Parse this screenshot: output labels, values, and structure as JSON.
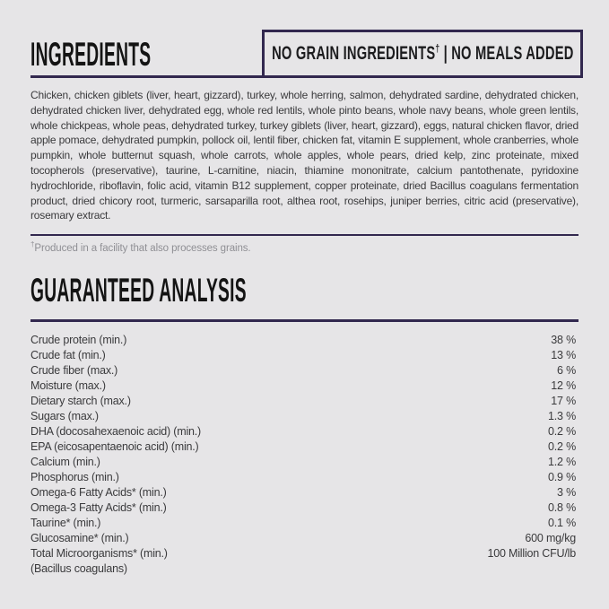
{
  "page": {
    "background_color": "#e6e5e7",
    "accent_color": "#32284f",
    "body_text_color": "#3a3a3c"
  },
  "ingredients": {
    "title": "INGREDIENTS",
    "badge": {
      "text_before_dagger": "NO GRAIN INGREDIENTS",
      "dagger": "†",
      "text_after_dagger": " | NO MEALS ADDED"
    },
    "body": "Chicken, chicken giblets (liver, heart, gizzard), turkey, whole herring, salmon, dehydrated sardine, dehydrated chicken, dehydrated chicken liver, dehydrated egg, whole red lentils, whole pinto beans, whole navy beans, whole green lentils, whole chickpeas, whole peas, dehydrated turkey, turkey giblets (liver, heart, gizzard), eggs, natural chicken flavor, dried apple pomace, dehydrated pumpkin, pollock oil, lentil fiber, chicken fat, vitamin E supplement, whole cranberries, whole pumpkin, whole butternut squash, whole carrots, whole apples, whole pears, dried kelp, zinc proteinate, mixed tocopherols (preservative), taurine, L-carnitine, niacin, thiamine mononitrate, calcium pantothenate, pyridoxine hydrochloride, riboflavin, folic acid, vitamin B12 supplement, copper proteinate, dried Bacillus coagulans fermentation product, dried chicory root, turmeric, sarsaparilla root, althea root, rosehips, juniper berries, citric acid (preservative), rosemary extract.",
    "footnote": {
      "dagger": "†",
      "text": "Produced in a facility that also processes grains."
    }
  },
  "guaranteed_analysis": {
    "title": "GUARANTEED ANALYSIS",
    "rows": [
      {
        "label": "Crude protein (min.)",
        "value": "38 %"
      },
      {
        "label": "Crude fat (min.)",
        "value": "13 %"
      },
      {
        "label": "Crude fiber (max.)",
        "value": "6 %"
      },
      {
        "label": "Moisture (max.)",
        "value": "12 %"
      },
      {
        "label": "Dietary starch (max.)",
        "value": "17 %"
      },
      {
        "label": "Sugars (max.)",
        "value": "1.3 %"
      },
      {
        "label": "DHA (docosahexaenoic acid) (min.)",
        "value": "0.2 %"
      },
      {
        "label": "EPA (eicosapentaenoic acid) (min.)",
        "value": "0.2 %"
      },
      {
        "label": "Calcium (min.)",
        "value": "1.2 %"
      },
      {
        "label": "Phosphorus (min.)",
        "value": "0.9 %"
      },
      {
        "label": "Omega-6 Fatty Acids* (min.)",
        "value": "3 %"
      },
      {
        "label": "Omega-3 Fatty Acids* (min.)",
        "value": "0.8 %"
      },
      {
        "label": "Taurine* (min.)",
        "value": "0.1 %"
      },
      {
        "label": "Glucosamine* (min.)",
        "value": "600 mg/kg"
      },
      {
        "label": "Total Microorganisms* (min.)",
        "value": "100 Million CFU/lb"
      },
      {
        "label": "(Bacillus coagulans)",
        "value": ""
      }
    ]
  }
}
